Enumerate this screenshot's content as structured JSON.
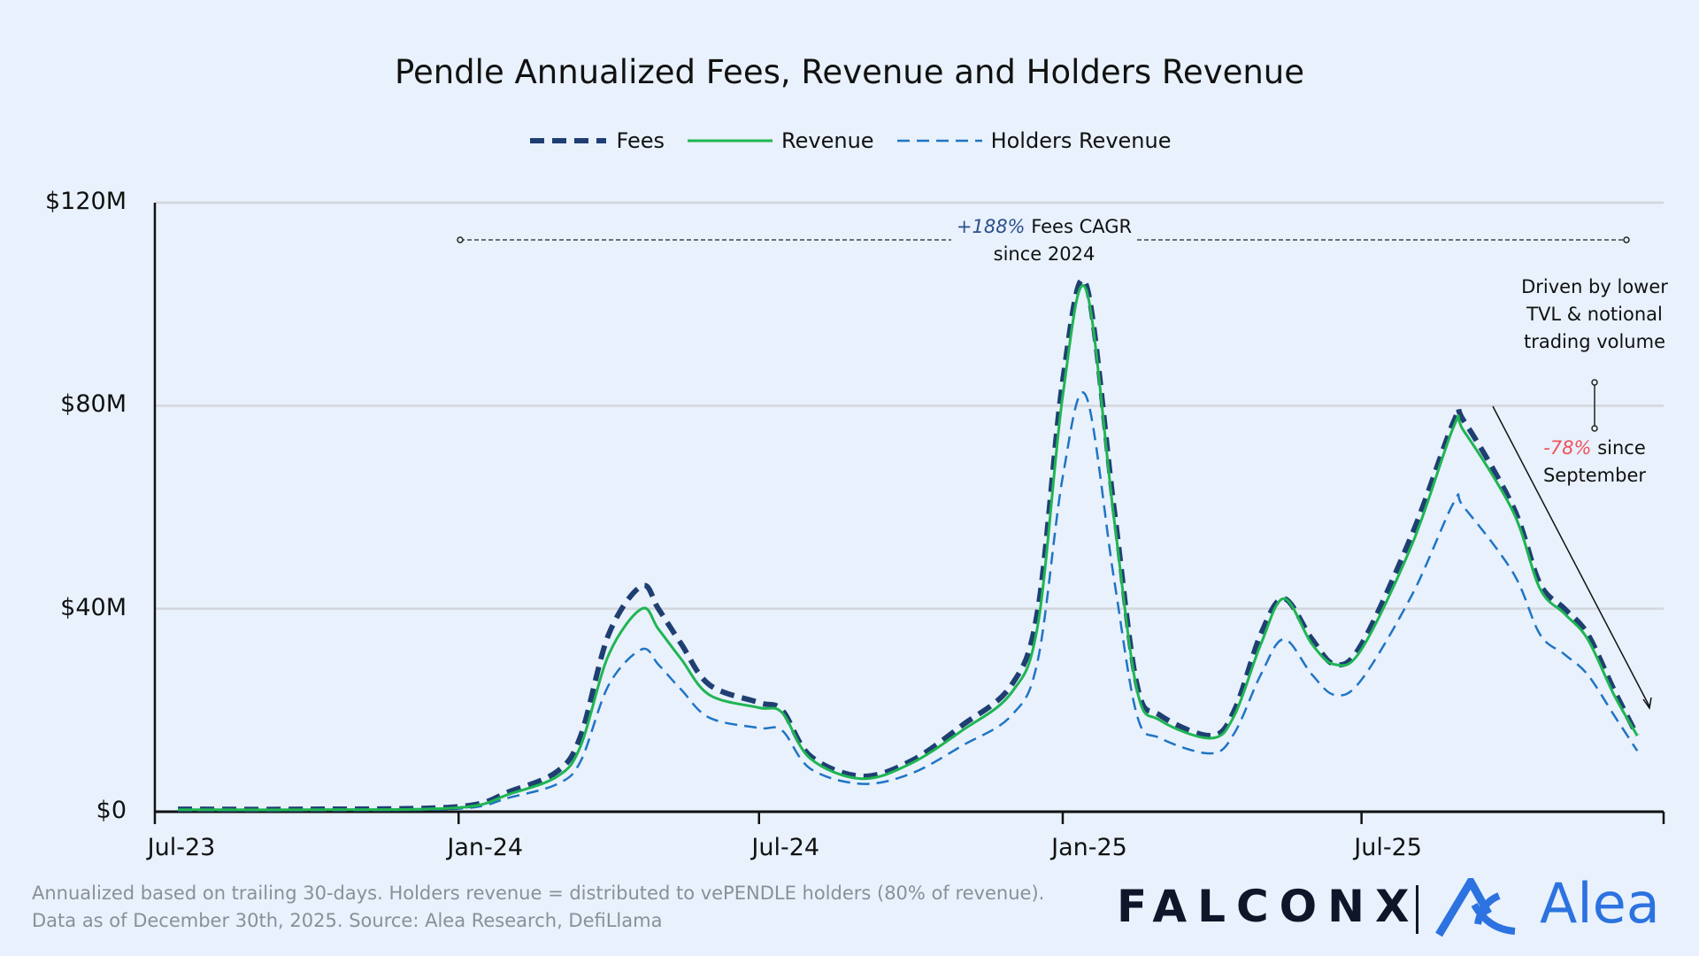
{
  "chart_data": {
    "type": "line",
    "title": "Pendle Annualized Fees, Revenue and Holders Revenue",
    "x_axis": {
      "ticks": [
        "Jul-23",
        "Jan-24",
        "Jul-24",
        "Jan-25",
        "Jul-25"
      ],
      "tick_dates": [
        "2023-07-01",
        "2024-01-01",
        "2024-07-01",
        "2025-01-01",
        "2025-07-01"
      ],
      "range": [
        "2023-07-01",
        "2025-12-31"
      ]
    },
    "y_axis": {
      "ticks": [
        "$0",
        "$40M",
        "$80M",
        "$120M"
      ],
      "tick_values": [
        0,
        40,
        80,
        120
      ],
      "range": [
        0,
        120
      ],
      "unit": "$M"
    },
    "grid": "horizontal",
    "legend_position": "top-center",
    "x": [
      "2023-07-15",
      "2023-10-01",
      "2024-01-01",
      "2024-02-01",
      "2024-03-01",
      "2024-03-15",
      "2024-04-01",
      "2024-04-21",
      "2024-05-01",
      "2024-05-15",
      "2024-06-01",
      "2024-07-01",
      "2024-07-15",
      "2024-08-01",
      "2024-09-01",
      "2024-10-01",
      "2024-11-01",
      "2024-12-01",
      "2024-12-17",
      "2025-01-01",
      "2025-01-15",
      "2025-02-01",
      "2025-02-15",
      "2025-03-01",
      "2025-04-01",
      "2025-04-15",
      "2025-05-01",
      "2025-05-15",
      "2025-06-01",
      "2025-06-15",
      "2025-07-01",
      "2025-08-01",
      "2025-08-26",
      "2025-09-01",
      "2025-10-01",
      "2025-10-17",
      "2025-11-01",
      "2025-11-15",
      "2025-12-01",
      "2025-12-15"
    ],
    "series": [
      {
        "name": "Fees",
        "color": "#1f3f73",
        "style": "dashed-thick",
        "values": [
          0.5,
          0.5,
          1,
          4,
          8,
          15,
          35,
          44.5,
          40,
          33,
          25,
          21.5,
          20,
          11,
          7,
          10,
          17,
          25,
          40,
          85,
          104,
          60,
          25,
          19,
          15,
          20,
          35,
          42,
          34,
          29,
          33,
          55,
          77,
          77,
          60,
          45,
          40,
          35,
          24,
          15
        ]
      },
      {
        "name": "Revenue",
        "color": "#1fb552",
        "style": "solid",
        "values": [
          0.4,
          0.4,
          0.8,
          3.5,
          7,
          13,
          31,
          40,
          36,
          30,
          23,
          20.5,
          19.5,
          10.5,
          6.5,
          9.5,
          16,
          23.5,
          37,
          82,
          103,
          58,
          24,
          18,
          14.5,
          19,
          33,
          42,
          33,
          29,
          32,
          53,
          76,
          75,
          59,
          44,
          39,
          34,
          23,
          15
        ]
      },
      {
        "name": "Holders Revenue",
        "color": "#1f74c4",
        "style": "dashed",
        "values": [
          0.3,
          0.3,
          0.6,
          2.8,
          5.5,
          10,
          25,
          32,
          29,
          24,
          18.5,
          16.5,
          16,
          8.5,
          5.5,
          7.5,
          13,
          19,
          30,
          66,
          82,
          46,
          19,
          14.5,
          11.5,
          15.5,
          27,
          34,
          27,
          23,
          26,
          43,
          61,
          60,
          47,
          35,
          31,
          27,
          19,
          12
        ]
      }
    ],
    "annotations": [
      {
        "highlight": "+188%",
        "text": "Fees CAGR",
        "line2": "since 2024",
        "highlight_color": "#2b4f8a"
      },
      {
        "text": [
          "Driven by lower",
          "TVL & notional",
          "trading volume"
        ]
      },
      {
        "highlight": "-78%",
        "text": "since",
        "line2": "September",
        "highlight_color": "#f0525a"
      }
    ]
  },
  "footer": {
    "note": "Annualized based on trailing 30-days. Holders revenue = distributed to vePENDLE holders (80% of revenue).",
    "source": "Data as of December 30th, 2025. Source: Alea Research, DefiLlama"
  },
  "logos": {
    "falconx": "FALCONX",
    "alea": "Alea",
    "alea_color": "#2c72e0"
  }
}
